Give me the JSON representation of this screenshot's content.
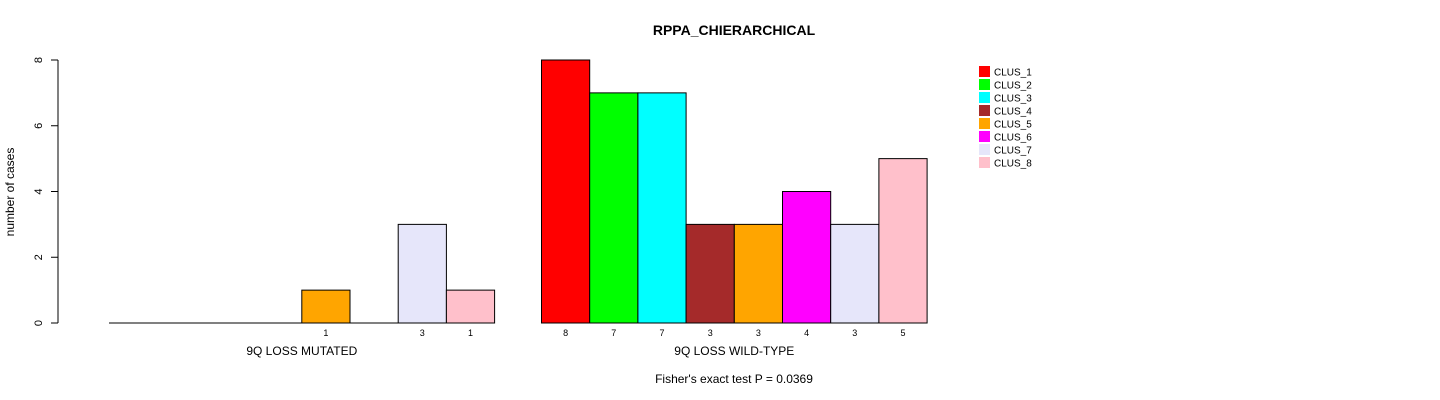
{
  "chart_data": {
    "type": "bar",
    "title": "RPPA_CHIERARCHICAL",
    "ylabel": "number of cases",
    "xlabel": "",
    "ylim": [
      0,
      8
    ],
    "yticks": [
      0,
      2,
      4,
      6,
      8
    ],
    "legend_position": "top-right",
    "categories": [
      "CLUS_1",
      "CLUS_2",
      "CLUS_3",
      "CLUS_4",
      "CLUS_5",
      "CLUS_6",
      "CLUS_7",
      "CLUS_8"
    ],
    "colors": [
      "#ff0000",
      "#00ff00",
      "#00ffff",
      "#a52a2a",
      "#ffa500",
      "#ff00ff",
      "#e6e6fa",
      "#ffc0cb"
    ],
    "series": [
      {
        "name": "9Q LOSS MUTATED",
        "values": [
          0,
          0,
          0,
          0,
          1,
          0,
          3,
          1
        ]
      },
      {
        "name": "9Q LOSS WILD-TYPE",
        "values": [
          8,
          7,
          7,
          3,
          3,
          4,
          3,
          5
        ]
      }
    ],
    "footnote": "Fisher's exact test P = 0.0369"
  }
}
